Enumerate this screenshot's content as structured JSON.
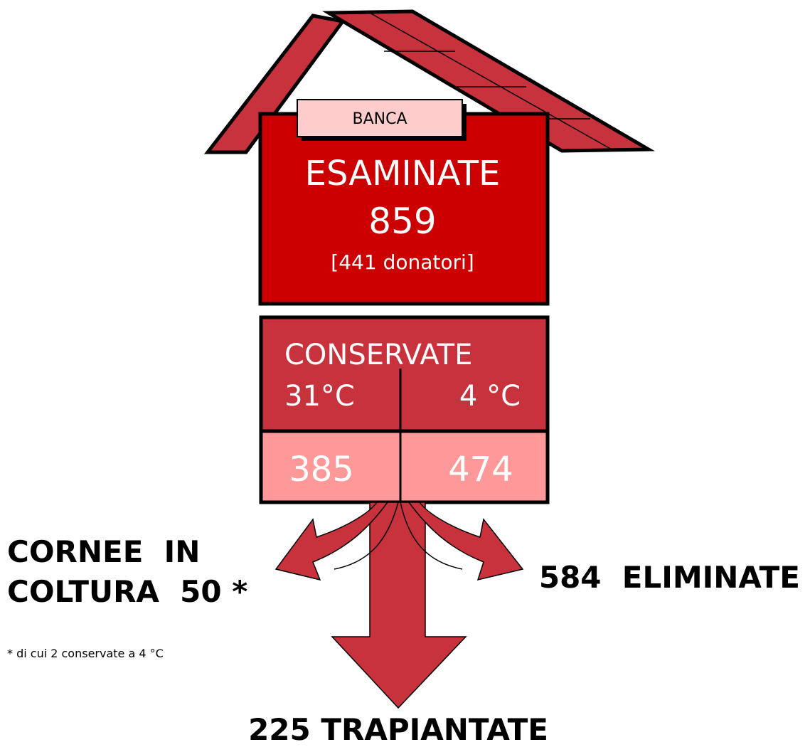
{
  "bank_label": "BANCA",
  "examined": {
    "title": "ESAMINATE",
    "count": "859",
    "donors": "[441 donatori]"
  },
  "preserved": {
    "title": "CONSERVATE",
    "columns": [
      {
        "temperature": "31°C",
        "count": "385"
      },
      {
        "temperature": "4 °C",
        "count": "474"
      }
    ]
  },
  "outcomes": {
    "culture": {
      "lines": [
        "CORNEE  IN",
        "COLTURA  50 *"
      ],
      "footnote": "* di cui 2 conservate a 4 °C"
    },
    "eliminated": "584  ELIMINATE",
    "transplanted": "225 TRAPIANTATE"
  }
}
